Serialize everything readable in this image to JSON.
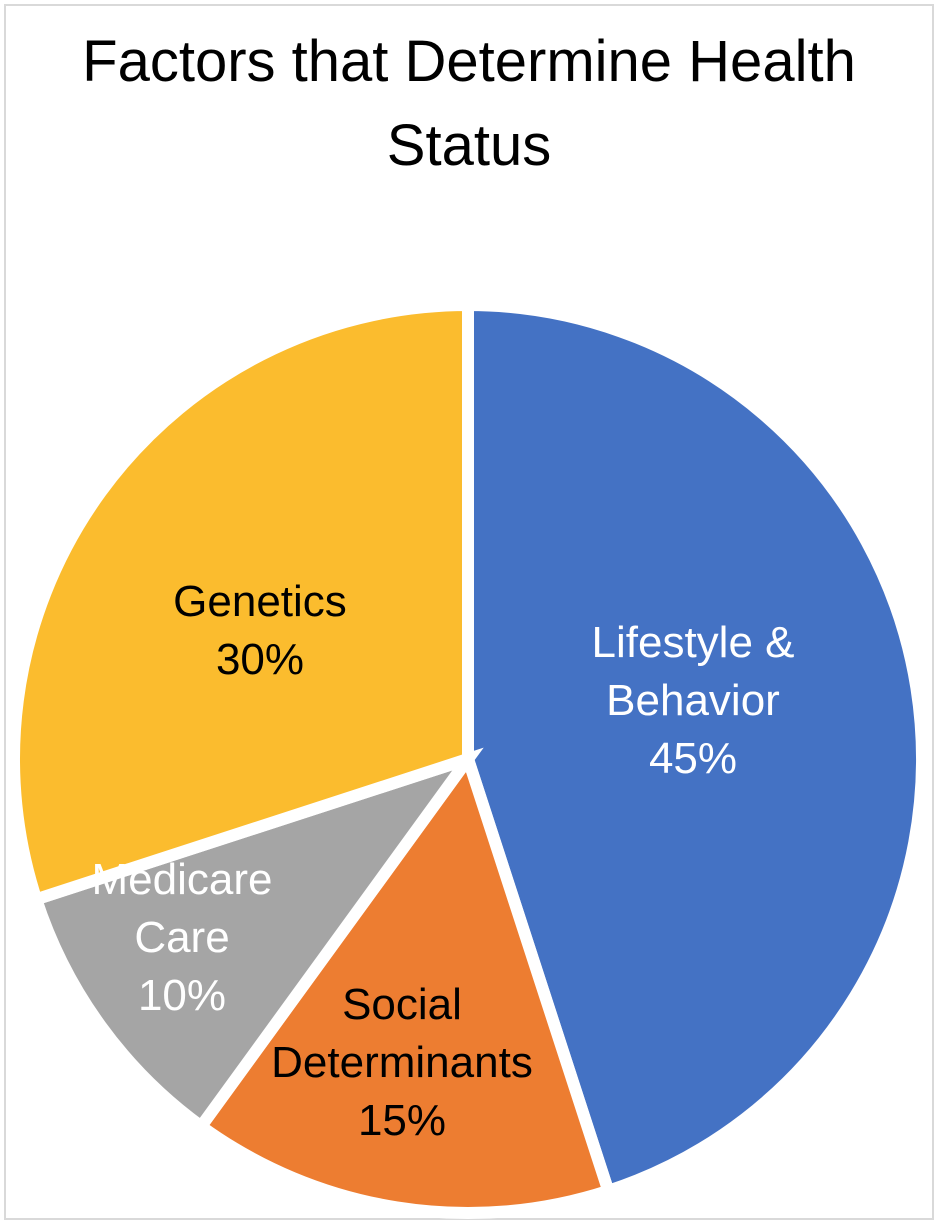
{
  "chart_data": {
    "type": "pie",
    "title": "Factors that Determine Health Status",
    "start_angle_deg": 0,
    "direction": "clockwise",
    "slices": [
      {
        "name": "Lifestyle &",
        "name2": "Behavior",
        "value": 45,
        "value_label": "45%",
        "color": "#4472c4",
        "label_color": "#ffffff"
      },
      {
        "name": "Social",
        "name2": "Determinants",
        "value": 15,
        "value_label": "15%",
        "color": "#ed7d31",
        "label_color": "#000000"
      },
      {
        "name": "Medicare",
        "name2": "Care",
        "value": 10,
        "value_label": "10%",
        "color": "#a5a5a5",
        "label_color": "#ffffff"
      },
      {
        "name": "Genetics",
        "name2": "",
        "value": 30,
        "value_label": "30%",
        "color": "#fbbc2e",
        "label_color": "#000000"
      }
    ],
    "legend": "none",
    "data_labels": "category-and-percent"
  }
}
